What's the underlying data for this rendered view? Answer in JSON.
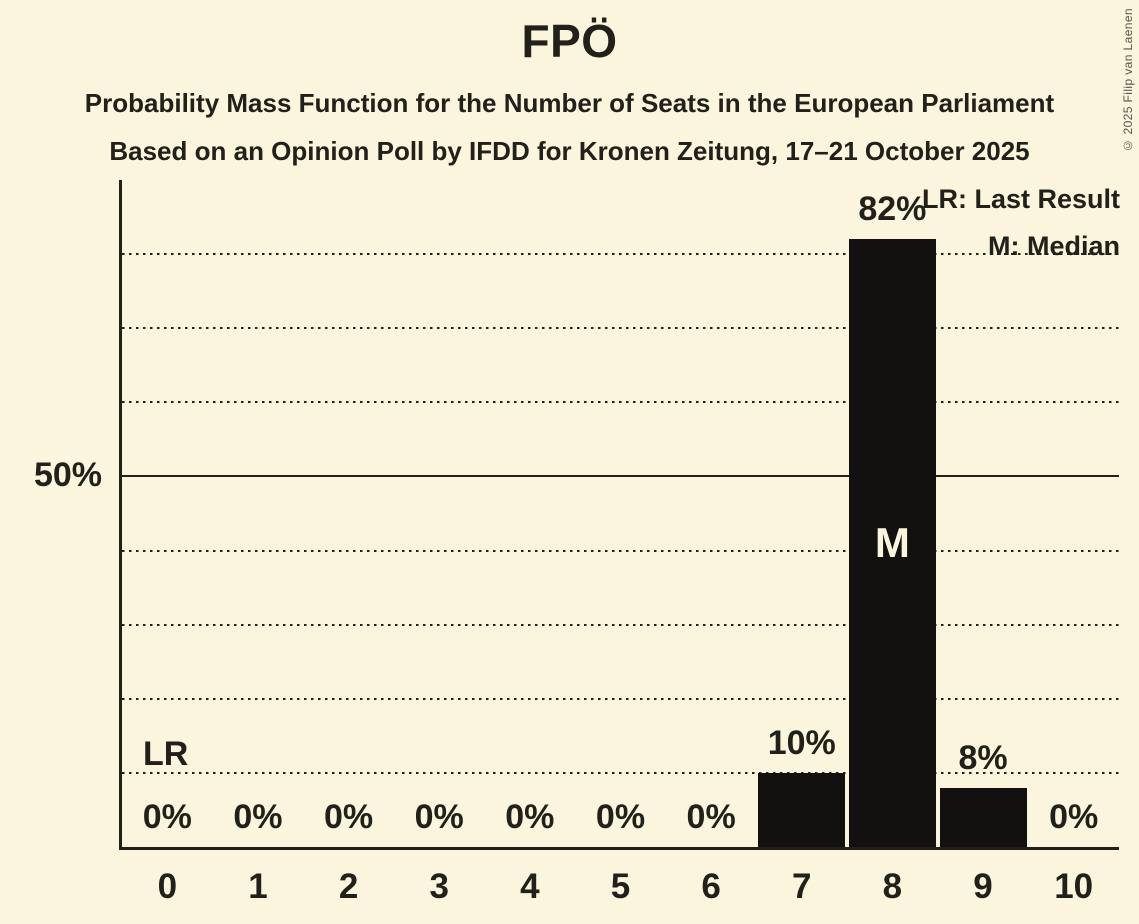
{
  "chart_data": {
    "type": "bar",
    "title": "FPÖ",
    "subtitle1": "Probability Mass Function for the Number of Seats in the European Parliament",
    "subtitle2": "Based on an Opinion Poll by IFDD for Kronen Zeitung, 17–21 October 2025",
    "categories": [
      0,
      1,
      2,
      3,
      4,
      5,
      6,
      7,
      8,
      9,
      10
    ],
    "values": [
      0,
      0,
      0,
      0,
      0,
      0,
      0,
      10,
      82,
      8,
      0
    ],
    "value_labels": [
      "0%",
      "0%",
      "0%",
      "0%",
      "0%",
      "0%",
      "0%",
      "10%",
      "82%",
      "8%",
      "0%"
    ],
    "ylim": [
      0,
      90
    ],
    "y_tick": {
      "value": 50,
      "label": "50%"
    },
    "gridlines_pct": [
      10,
      20,
      30,
      40,
      50,
      60,
      70,
      80
    ],
    "solid_gridline_pct": 50,
    "grid_style": "dotted",
    "legend_position": "top-right",
    "legend": {
      "lr": "LR: Last Result",
      "m": "M: Median"
    },
    "median": {
      "seat": 8,
      "marker": "M"
    },
    "last_result": {
      "seat": 0,
      "marker": "LR"
    },
    "bar_color": "#131110",
    "background_color": "#FAF5DC",
    "median_label_color": "#FAF5DC"
  },
  "copyright": "© 2025 Filip van Laenen"
}
